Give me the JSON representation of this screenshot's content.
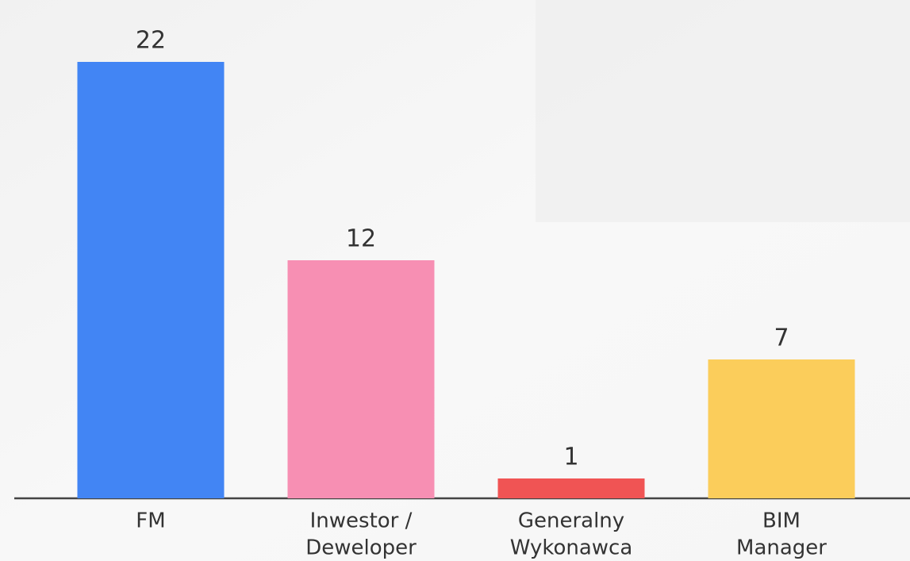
{
  "chart_data": {
    "type": "bar",
    "categories": [
      [
        "FM"
      ],
      [
        "Inwestor /",
        "Deweloper"
      ],
      [
        "Generalny",
        "Wykonawca"
      ],
      [
        "BIM",
        "Manager"
      ]
    ],
    "values": [
      22,
      12,
      1,
      7
    ],
    "colors": [
      "#4285f4",
      "#f78fb3",
      "#f05454",
      "#fbcd5b"
    ]
  }
}
